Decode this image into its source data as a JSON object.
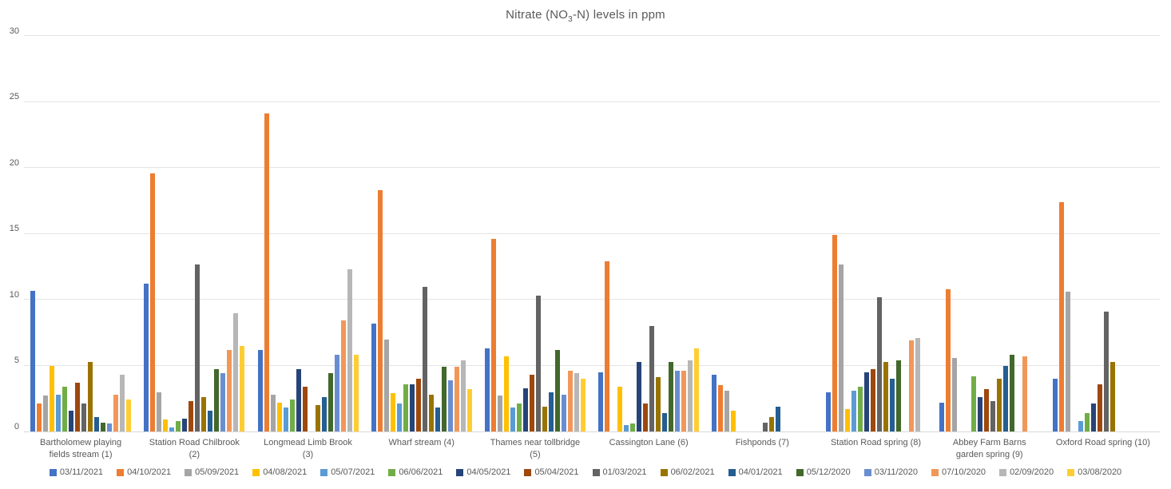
{
  "chart": {
    "title_prefix": "Nitrate (NO",
    "title_sub": "3",
    "title_suffix": "-N) levels in ppm"
  },
  "chart_data": {
    "type": "bar",
    "title": "Nitrate (NO3-N) levels in ppm",
    "xlabel": "",
    "ylabel": "",
    "ylim": [
      0,
      30
    ],
    "yticks": [
      0,
      5,
      10,
      15,
      20,
      25,
      30
    ],
    "grid": true,
    "legend_position": "bottom",
    "axis_color": "#595959",
    "gridline_color": "#e4e4e4",
    "categories": [
      "Bartholomew playing fields stream (1)",
      "Station Road Chilbrook (2)",
      "Longmead Limb Brook (3)",
      "Wharf stream (4)",
      "Thames near tollbridge (5)",
      "Cassington Lane (6)",
      "Fishponds (7)",
      "Station Road spring (8)",
      "Abbey Farm Barns garden spring (9)",
      "Oxford Road spring (10)"
    ],
    "series": [
      {
        "name": "03/11/2021",
        "color": "#4472C4",
        "values": [
          10.7,
          11.2,
          6.2,
          8.2,
          6.3,
          4.5,
          4.3,
          3.0,
          2.2,
          4.0
        ]
      },
      {
        "name": "04/10/2021",
        "color": "#ED7D31",
        "values": [
          2.1,
          19.6,
          24.1,
          18.3,
          14.6,
          12.9,
          3.5,
          14.9,
          10.8,
          17.4
        ]
      },
      {
        "name": "05/09/2021",
        "color": "#A5A5A5",
        "values": [
          2.7,
          3.0,
          2.8,
          7.0,
          2.7,
          0,
          3.1,
          12.7,
          5.6,
          10.6
        ]
      },
      {
        "name": "04/08/2021",
        "color": "#FFC000",
        "values": [
          5.0,
          0.9,
          2.2,
          2.9,
          5.7,
          3.4,
          1.6,
          1.7,
          0,
          0
        ]
      },
      {
        "name": "05/07/2021",
        "color": "#5B9BD5",
        "values": [
          2.8,
          0.3,
          1.8,
          2.1,
          1.8,
          0.5,
          0,
          3.1,
          0,
          0.8
        ]
      },
      {
        "name": "06/06/2021",
        "color": "#70AD47",
        "values": [
          3.4,
          0.8,
          2.4,
          3.6,
          2.1,
          0.6,
          0,
          3.4,
          4.2,
          1.4
        ]
      },
      {
        "name": "04/05/2021",
        "color": "#264478",
        "values": [
          1.6,
          1.0,
          4.7,
          3.6,
          3.3,
          5.3,
          0,
          4.5,
          2.6,
          2.1
        ]
      },
      {
        "name": "05/04/2021",
        "color": "#9E480E",
        "values": [
          3.7,
          2.3,
          3.4,
          4.0,
          4.3,
          2.1,
          0,
          4.7,
          3.2,
          3.6
        ]
      },
      {
        "name": "01/03/2021",
        "color": "#636363",
        "values": [
          2.1,
          12.7,
          0,
          11.0,
          10.3,
          8.0,
          0.7,
          10.2,
          2.3,
          9.1
        ]
      },
      {
        "name": "06/02/2021",
        "color": "#997300",
        "values": [
          5.3,
          2.6,
          2.0,
          2.8,
          1.9,
          4.1,
          1.1,
          5.3,
          4.0,
          5.3
        ]
      },
      {
        "name": "04/01/2021",
        "color": "#255E91",
        "values": [
          1.1,
          1.6,
          2.6,
          1.8,
          3.0,
          1.4,
          1.9,
          4.0,
          5.0,
          0
        ]
      },
      {
        "name": "05/12/2020",
        "color": "#43682B",
        "values": [
          0.7,
          4.7,
          4.4,
          4.9,
          6.2,
          5.3,
          0,
          5.4,
          5.8,
          0
        ]
      },
      {
        "name": "03/11/2020",
        "color": "#698ED0",
        "values": [
          0.6,
          4.4,
          5.8,
          3.9,
          2.8,
          4.6,
          0,
          0,
          0,
          0
        ]
      },
      {
        "name": "07/10/2020",
        "color": "#F1975A",
        "values": [
          2.8,
          6.2,
          8.4,
          4.9,
          4.6,
          4.6,
          0,
          6.9,
          5.7,
          0
        ]
      },
      {
        "name": "02/09/2020",
        "color": "#B7B7B7",
        "values": [
          4.3,
          9.0,
          12.3,
          5.4,
          4.4,
          5.4,
          0,
          7.1,
          0,
          0
        ]
      },
      {
        "name": "03/08/2020",
        "color": "#FFCD33",
        "values": [
          2.4,
          6.5,
          5.8,
          3.2,
          4.0,
          6.3,
          0,
          0,
          0,
          0
        ]
      }
    ]
  }
}
